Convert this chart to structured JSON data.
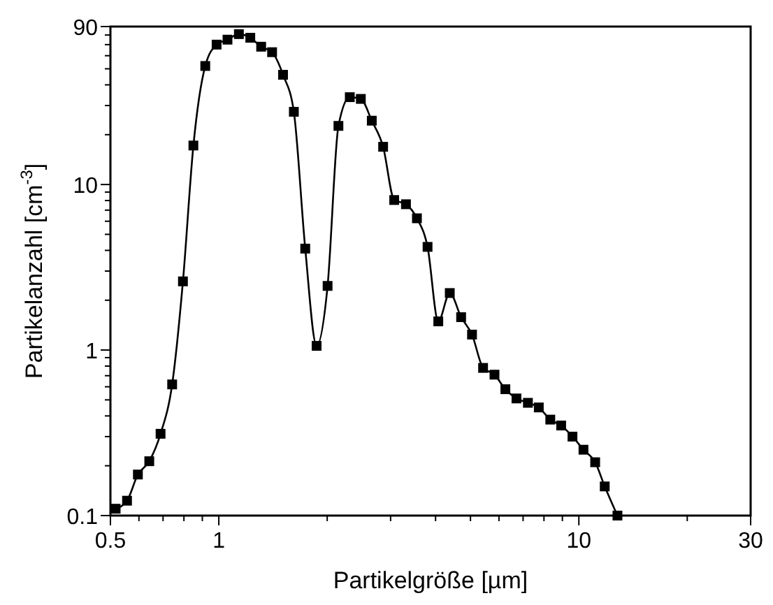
{
  "chart_data": {
    "type": "line",
    "xlabel": "Partikelgröße [µm]",
    "ylabel": "Partikelanzahl [cm$^{-3}$]",
    "log": "xy",
    "grid": false,
    "marker": "square",
    "line_style": "solid",
    "xlim": [
      0.5,
      30
    ],
    "ylim": [
      0.1,
      90
    ],
    "xticks": [
      0.5,
      {
        "value": 0.6,
        "label": null
      },
      {
        "value": 0.7,
        "label": null
      },
      {
        "value": 0.8,
        "label": null
      },
      {
        "value": 0.9,
        "label": null
      },
      1,
      {
        "value": 2,
        "label": null
      },
      {
        "value": 3,
        "label": null
      },
      {
        "value": 4,
        "label": null
      },
      {
        "value": 5,
        "label": null
      },
      {
        "value": 6,
        "label": null
      },
      {
        "value": 7,
        "label": null
      },
      {
        "value": 8,
        "label": null
      },
      {
        "value": 9,
        "label": null
      },
      10,
      {
        "value": 20,
        "label": null
      },
      30
    ],
    "yticks": [
      0.1,
      {
        "value": 0.2,
        "label": null
      },
      {
        "value": 0.3,
        "label": null
      },
      {
        "value": 0.4,
        "label": null
      },
      {
        "value": 0.5,
        "label": null
      },
      {
        "value": 0.6,
        "label": null
      },
      {
        "value": 0.7,
        "label": null
      },
      {
        "value": 0.8,
        "label": null
      },
      {
        "value": 0.9,
        "label": null
      },
      1,
      {
        "value": 2,
        "label": null
      },
      {
        "value": 3,
        "label": null
      },
      {
        "value": 4,
        "label": null
      },
      {
        "value": 5,
        "label": null
      },
      {
        "value": 6,
        "label": null
      },
      {
        "value": 7,
        "label": null
      },
      {
        "value": 8,
        "label": null
      },
      {
        "value": 9,
        "label": null
      },
      10,
      {
        "value": 20,
        "label": null
      },
      {
        "value": 30,
        "label": null
      },
      {
        "value": 40,
        "label": null
      },
      {
        "value": 50,
        "label": null
      },
      {
        "value": 60,
        "label": null
      },
      {
        "value": 70,
        "label": null
      },
      {
        "value": 80,
        "label": null
      },
      90
    ],
    "series": [
      {
        "color": "#000000",
        "x": [
          0.517,
          0.556,
          0.596,
          0.641,
          0.689,
          0.742,
          0.795,
          0.85,
          0.917,
          0.986,
          1.057,
          1.137,
          1.223,
          1.311,
          1.406,
          1.508,
          1.616,
          1.738,
          1.869,
          2.005,
          2.149,
          2.311,
          2.48,
          2.66,
          2.86,
          3.07,
          3.31,
          3.55,
          3.8,
          4.07,
          4.38,
          4.71,
          5.05,
          5.42,
          5.83,
          6.25,
          6.71,
          7.22,
          7.74,
          8.33,
          8.93,
          9.6,
          10.3,
          11.1,
          11.8,
          12.8
        ],
        "values": [
          0.11,
          0.123,
          0.177,
          0.213,
          0.312,
          0.62,
          2.6,
          17.2,
          52,
          70,
          75,
          81,
          77,
          68,
          63,
          46,
          27.5,
          4.1,
          1.06,
          2.44,
          22.6,
          33.7,
          32.9,
          24.3,
          16.9,
          8.06,
          7.6,
          6.25,
          4.2,
          1.49,
          2.21,
          1.58,
          1.24,
          0.78,
          0.71,
          0.58,
          0.51,
          0.48,
          0.45,
          0.38,
          0.35,
          0.3,
          0.25,
          0.21,
          0.15,
          0.1
        ]
      }
    ]
  }
}
